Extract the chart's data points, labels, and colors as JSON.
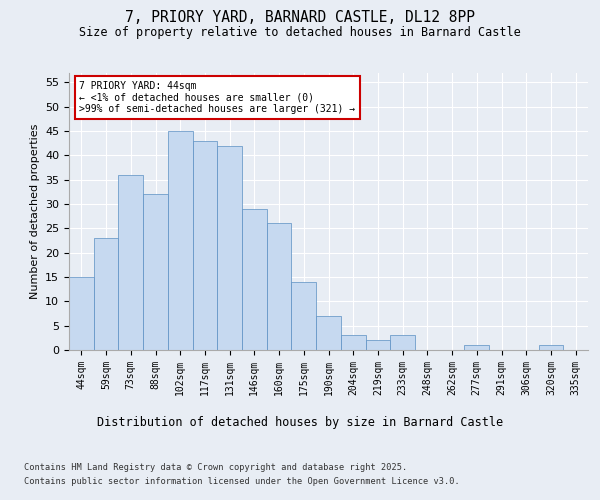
{
  "title1": "7, PRIORY YARD, BARNARD CASTLE, DL12 8PP",
  "title2": "Size of property relative to detached houses in Barnard Castle",
  "xlabel": "Distribution of detached houses by size in Barnard Castle",
  "ylabel": "Number of detached properties",
  "categories": [
    "44sqm",
    "59sqm",
    "73sqm",
    "88sqm",
    "102sqm",
    "117sqm",
    "131sqm",
    "146sqm",
    "160sqm",
    "175sqm",
    "190sqm",
    "204sqm",
    "219sqm",
    "233sqm",
    "248sqm",
    "262sqm",
    "277sqm",
    "291sqm",
    "306sqm",
    "320sqm",
    "335sqm"
  ],
  "values": [
    15,
    23,
    36,
    32,
    45,
    43,
    42,
    29,
    26,
    14,
    7,
    3,
    2,
    3,
    0,
    0,
    1,
    0,
    0,
    1,
    0
  ],
  "bar_color": "#c6d9f0",
  "bar_edge_color": "#5a8fc3",
  "annotation_title": "7 PRIORY YARD: 44sqm",
  "annotation_line1": "← <1% of detached houses are smaller (0)",
  "annotation_line2": ">99% of semi-detached houses are larger (321) →",
  "annotation_box_color": "#ffffff",
  "annotation_box_edge": "#cc0000",
  "ylim": [
    0,
    57
  ],
  "yticks": [
    0,
    5,
    10,
    15,
    20,
    25,
    30,
    35,
    40,
    45,
    50,
    55
  ],
  "footnote1": "Contains HM Land Registry data © Crown copyright and database right 2025.",
  "footnote2": "Contains public sector information licensed under the Open Government Licence v3.0.",
  "bg_color": "#e8edf4",
  "plot_bg_color": "#e8edf4"
}
